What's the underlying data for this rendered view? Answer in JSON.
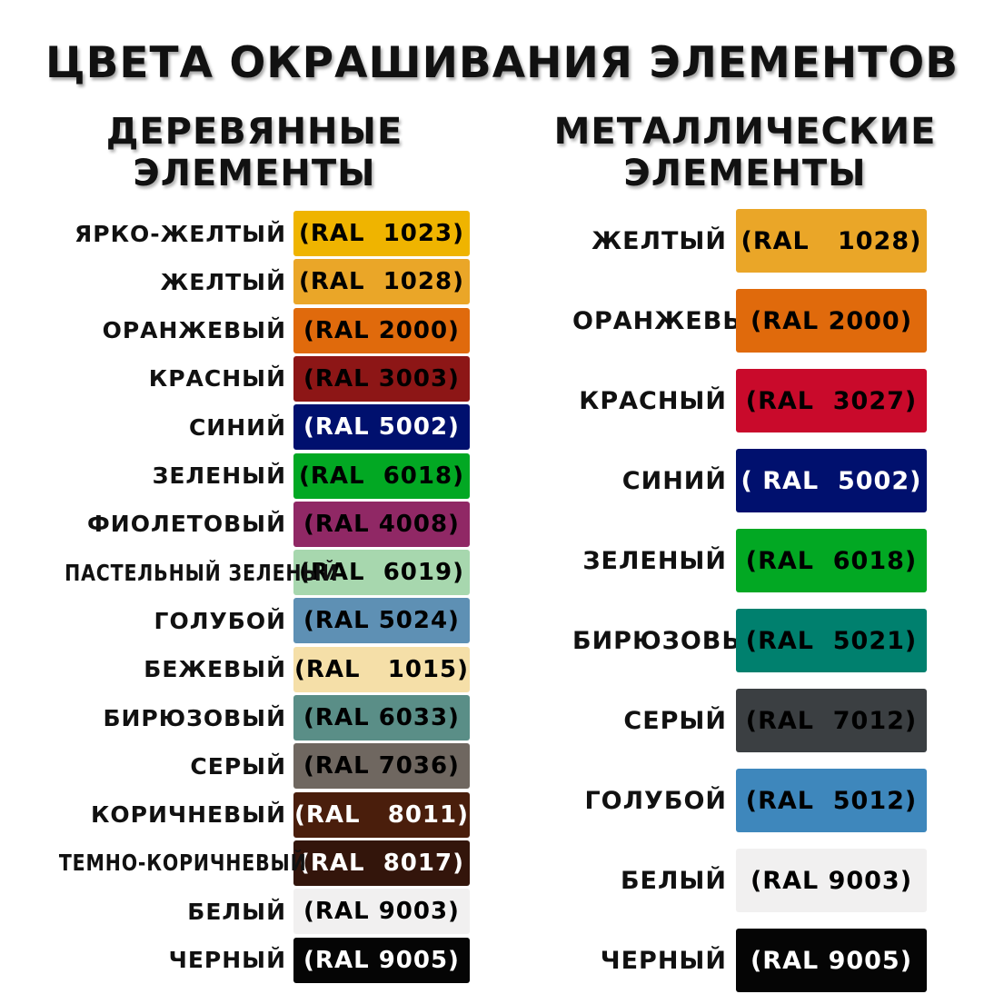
{
  "title": "ЦВЕТА ОКРАШИВАНИЯ ЭЛЕМЕНТОВ",
  "wood": {
    "header_line1": "ДЕРЕВЯННЫЕ",
    "header_line2": "ЭЛЕМЕНТЫ",
    "items": [
      {
        "name": "ЯРКО-ЖЕЛТЫЙ",
        "code": "(RAL  1023)",
        "color": "#EFB400",
        "text": "#000000"
      },
      {
        "name": "ЖЕЛТЫЙ",
        "code": "(RAL  1028)",
        "color": "#EAA628",
        "text": "#000000"
      },
      {
        "name": "ОРАНЖЕВЫЙ",
        "code": "(RAL 2000)",
        "color": "#E06A0C",
        "text": "#000000"
      },
      {
        "name": "КРАСНЫЙ",
        "code": "(RAL 3003)",
        "color": "#8D1616",
        "text": "#000000"
      },
      {
        "name": "СИНИЙ",
        "code": "(RAL 5002)",
        "color": "#00106E",
        "text": "#FFFFFF"
      },
      {
        "name": "ЗЕЛЕНЫЙ",
        "code": "(RAL  6018)",
        "color": "#02A823",
        "text": "#000000"
      },
      {
        "name": "ФИОЛЕТОВЫЙ",
        "code": "(RAL 4008)",
        "color": "#902865",
        "text": "#000000"
      },
      {
        "name": "ПАСТЕЛЬНЫЙ ЗЕЛЕНЫЙ",
        "code": "(RAL  6019)",
        "color": "#A7D7AE",
        "text": "#000000"
      },
      {
        "name": "ГОЛУБОЙ",
        "code": "(RAL 5024)",
        "color": "#5E90B4",
        "text": "#000000"
      },
      {
        "name": "БЕЖЕВЫЙ",
        "code": "(RAL   1015)",
        "color": "#F5DFA8",
        "text": "#000000"
      },
      {
        "name": "БИРЮЗОВЫЙ",
        "code": "(RAL 6033)",
        "color": "#5A8E87",
        "text": "#000000"
      },
      {
        "name": "СЕРЫЙ",
        "code": "(RAL 7036)",
        "color": "#6F6760",
        "text": "#000000"
      },
      {
        "name": "КОРИЧНЕВЫЙ",
        "code": "(RAL   8011)",
        "color": "#4A1E0C",
        "text": "#FFFFFF"
      },
      {
        "name": "ТЕМНО-КОРИЧНЕВЫЙ",
        "code": "(RAL  8017)",
        "color": "#33150B",
        "text": "#FFFFFF"
      },
      {
        "name": "БЕЛЫЙ",
        "code": "(RAL 9003)",
        "color": "#F1F0F0",
        "text": "#000000"
      },
      {
        "name": "ЧЕРНЫЙ",
        "code": "(RAL 9005)",
        "color": "#050505",
        "text": "#FFFFFF"
      }
    ]
  },
  "metal": {
    "header_line1": "МЕТАЛЛИЧЕСКИЕ",
    "header_line2": "ЭЛЕМЕНТЫ",
    "items": [
      {
        "name": "ЖЕЛТЫЙ",
        "code": "(RAL   1028)",
        "color": "#EAA628",
        "text": "#000000"
      },
      {
        "name": "ОРАНЖЕВЫЙ",
        "code": "(RAL 2000)",
        "color": "#E06A0C",
        "text": "#000000"
      },
      {
        "name": "КРАСНЫЙ",
        "code": "(RAL  3027)",
        "color": "#C90A2B",
        "text": "#000000"
      },
      {
        "name": "СИНИЙ",
        "code": "( RAL  5002)",
        "color": "#00106E",
        "text": "#FFFFFF"
      },
      {
        "name": "ЗЕЛЕНЫЙ",
        "code": "(RAL  6018)",
        "color": "#02A823",
        "text": "#000000"
      },
      {
        "name": "БИРЮЗОВЫЙ",
        "code": "(RAL  5021)",
        "color": "#00806E",
        "text": "#000000"
      },
      {
        "name": "СЕРЫЙ",
        "code": "(RAL  7012)",
        "color": "#3B3F42",
        "text": "#000000"
      },
      {
        "name": "ГОЛУБОЙ",
        "code": "(RAL  5012)",
        "color": "#3E87BC",
        "text": "#000000"
      },
      {
        "name": "БЕЛЫЙ",
        "code": "(RAL 9003)",
        "color": "#F1F0F0",
        "text": "#000000"
      },
      {
        "name": "ЧЕРНЫЙ",
        "code": "(RAL 9005)",
        "color": "#050505",
        "text": "#FFFFFF"
      }
    ]
  }
}
